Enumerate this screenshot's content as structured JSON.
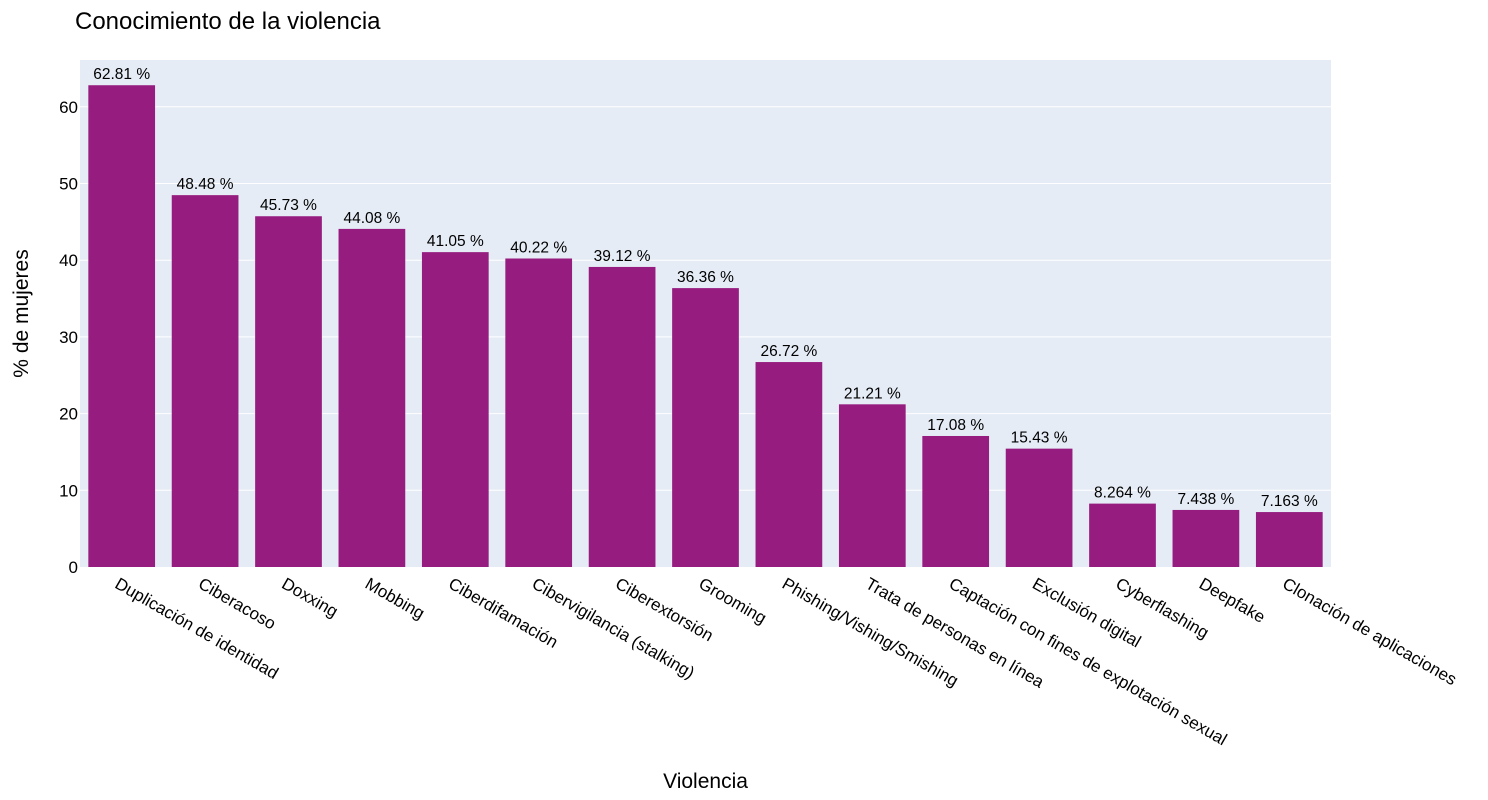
{
  "chart_data": {
    "type": "bar",
    "title": "Conocimiento de la violencia",
    "xlabel": "Violencia",
    "ylabel": "% de mujeres",
    "categories": [
      "Duplicación de identidad",
      "Ciberacoso",
      "Doxxing",
      "Mobbing",
      "Ciberdifamación",
      "Cibervigilancia (stalking)",
      "Ciberextorsión",
      "Grooming",
      "Phishing/Vishing/Smishing",
      "Trata de personas en línea",
      "Captación con fines de explotación sexual",
      "Exclusión digital",
      "Cyberflashing",
      "Deepfake",
      "Clonación de aplicaciones"
    ],
    "values": [
      62.81,
      48.48,
      45.73,
      44.08,
      41.05,
      40.22,
      39.12,
      36.36,
      26.72,
      21.21,
      17.08,
      15.43,
      8.264,
      7.438,
      7.163
    ],
    "data_labels": [
      "62.81 %",
      "48.48 %",
      "45.73 %",
      "44.08 %",
      "41.05 %",
      "40.22 %",
      "39.12 %",
      "36.36 %",
      "26.72 %",
      "21.21 %",
      "17.08 %",
      "15.43 %",
      "8.264 %",
      "7.438 %",
      "7.163 %"
    ],
    "yticks": [
      0,
      10,
      20,
      30,
      40,
      50,
      60
    ],
    "ylim": [
      0,
      66.1
    ],
    "grid": true,
    "colors": {
      "bar": "#961c7f",
      "plot_background": "#e5ecf6",
      "gridline": "#ffffff"
    }
  }
}
